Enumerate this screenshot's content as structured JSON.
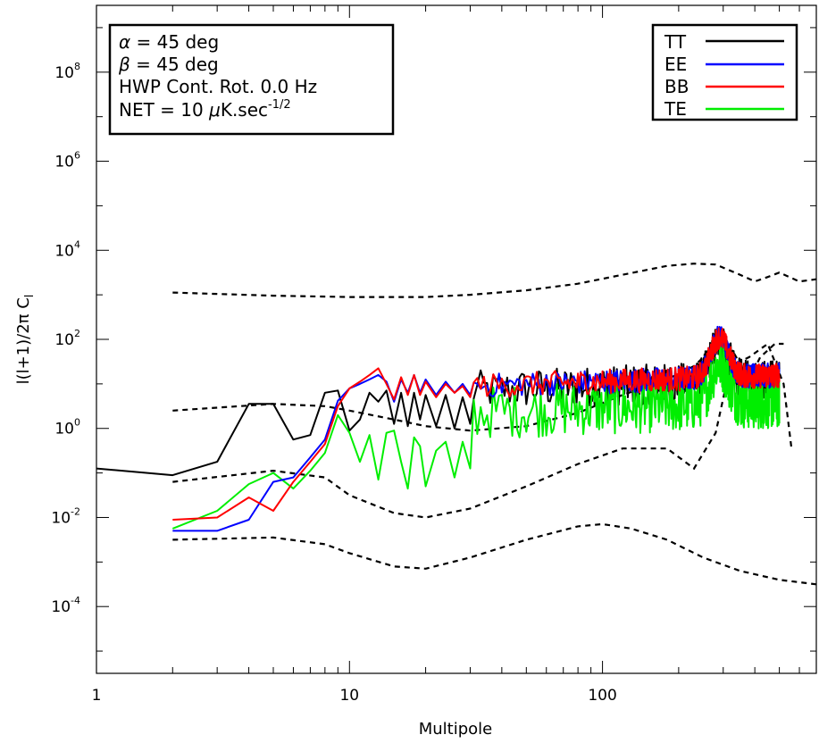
{
  "chart_data": {
    "type": "line",
    "title": "",
    "xlabel": "Multipole",
    "ylabel": "l(l+1)/2π C",
    "ylabel_subscript": "l",
    "xscale": "log",
    "yscale": "log",
    "xlim": [
      1,
      700
    ],
    "ylim_exp": [
      -5.5,
      9.5
    ],
    "x_ticks": [
      {
        "value": 1,
        "label": "1"
      },
      {
        "value": 10,
        "label": "10"
      },
      {
        "value": 100,
        "label": "100"
      }
    ],
    "y_ticks": [
      {
        "exp": -4,
        "base": "10",
        "sup": "-4"
      },
      {
        "exp": -2,
        "base": "10",
        "sup": "-2"
      },
      {
        "exp": 0,
        "base": "10",
        "sup": "0"
      },
      {
        "exp": 2,
        "base": "10",
        "sup": "2"
      },
      {
        "exp": 4,
        "base": "10",
        "sup": "4"
      },
      {
        "exp": 6,
        "base": "10",
        "sup": "6"
      },
      {
        "exp": 8,
        "base": "10",
        "sup": "8"
      }
    ],
    "annotation": {
      "line1_sym": "α",
      "line1_text": " = 45 deg",
      "line2_sym": "β",
      "line2_text": " = 45 deg",
      "line3_text": "HWP Cont. Rot. 0.0 Hz",
      "line4_pre": "NET = 10 ",
      "line4_sym": "μ",
      "line4_post": "K.sec",
      "line4_sup": "-1/2"
    },
    "legend": {
      "position": "top-right",
      "entries": [
        {
          "label": "TT",
          "color": "#000000"
        },
        {
          "label": "EE",
          "color": "#0000ff"
        },
        {
          "label": "BB",
          "color": "#ff0000"
        },
        {
          "label": "TE",
          "color": "#00ee00"
        }
      ]
    },
    "reference_curves": [
      {
        "name": "TT model",
        "style": "dashed",
        "x": [
          2,
          5,
          10,
          20,
          30,
          50,
          80,
          120,
          180,
          230,
          280,
          350,
          400,
          450,
          500,
          600,
          700
        ],
        "log10_y": [
          3.05,
          2.98,
          2.95,
          2.95,
          3.0,
          3.1,
          3.25,
          3.45,
          3.65,
          3.7,
          3.68,
          3.45,
          3.3,
          3.4,
          3.5,
          3.3,
          3.35
        ]
      },
      {
        "name": "EE model",
        "style": "dashed",
        "x": [
          2,
          5,
          8,
          10,
          15,
          20,
          30,
          50,
          80,
          120,
          180,
          230,
          280,
          300,
          330,
          380,
          420,
          480,
          520
        ],
        "log10_y": [
          0.4,
          0.55,
          0.5,
          0.4,
          0.2,
          0.05,
          -0.05,
          0.05,
          0.35,
          0.75,
          1.1,
          1.4,
          1.85,
          1.95,
          1.7,
          1.1,
          1.6,
          1.9,
          1.9
        ]
      },
      {
        "name": "TE model",
        "style": "dashed",
        "x": [
          2,
          5,
          8,
          10,
          15,
          20,
          30,
          50,
          80,
          120,
          180,
          230,
          280,
          320,
          380,
          450,
          520,
          560
        ],
        "log10_y": [
          -1.2,
          -0.95,
          -1.1,
          -1.5,
          -1.9,
          -2.0,
          -1.8,
          -1.3,
          -0.8,
          -0.45,
          -0.45,
          -0.9,
          -0.1,
          1.4,
          1.6,
          1.9,
          1.0,
          -0.5
        ]
      },
      {
        "name": "BB model",
        "style": "dashed",
        "x": [
          2,
          5,
          8,
          10,
          15,
          20,
          30,
          50,
          80,
          100,
          130,
          180,
          250,
          350,
          500,
          700
        ],
        "log10_y": [
          -2.5,
          -2.45,
          -2.6,
          -2.8,
          -3.1,
          -3.15,
          -2.9,
          -2.5,
          -2.2,
          -2.15,
          -2.25,
          -2.5,
          -2.9,
          -3.2,
          -3.4,
          -3.5
        ]
      }
    ],
    "series": [
      {
        "name": "TT",
        "color": "#000000",
        "x": [
          1,
          2,
          3,
          4,
          5,
          6,
          7,
          8,
          9,
          10,
          11,
          12,
          13,
          14,
          15,
          16,
          17,
          18,
          19,
          20,
          22,
          24,
          26,
          28,
          30
        ],
        "log10_y": [
          -0.9,
          -1.05,
          -0.75,
          0.55,
          0.55,
          -0.25,
          -0.15,
          0.8,
          0.85,
          -0.05,
          0.2,
          0.8,
          0.6,
          0.85,
          0.1,
          0.8,
          0.05,
          0.8,
          0.2,
          0.75,
          0.05,
          0.75,
          0.0,
          0.7,
          0.1
        ]
      },
      {
        "name": "EE",
        "color": "#0000ff",
        "x": [
          2,
          3,
          4,
          5,
          6,
          7,
          8,
          9,
          10,
          11,
          12,
          13,
          14,
          15,
          16,
          17,
          18,
          19,
          20,
          22,
          24,
          26,
          28,
          30
        ],
        "log10_y": [
          -2.3,
          -2.3,
          -2.05,
          -1.2,
          -1.1,
          -0.65,
          -0.25,
          0.62,
          0.9,
          1.0,
          1.1,
          1.2,
          1.05,
          0.6,
          1.1,
          0.8,
          1.2,
          0.8,
          1.1,
          0.75,
          1.05,
          0.8,
          1.0,
          0.75
        ]
      },
      {
        "name": "BB",
        "color": "#ff0000",
        "x": [
          2,
          3,
          4,
          5,
          6,
          7,
          8,
          9,
          10,
          11,
          12,
          13,
          14,
          15,
          16,
          17,
          18,
          19,
          20,
          22,
          24,
          26,
          28,
          30
        ],
        "log10_y": [
          -2.05,
          -2.0,
          -1.55,
          -1.85,
          -1.2,
          -0.75,
          -0.35,
          0.5,
          0.9,
          1.05,
          1.2,
          1.35,
          1.0,
          0.65,
          1.15,
          0.75,
          1.2,
          0.75,
          1.05,
          0.7,
          1.0,
          0.8,
          0.95,
          0.7
        ]
      },
      {
        "name": "TE",
        "color": "#00ee00",
        "x": [
          2,
          3,
          4,
          5,
          6,
          7,
          8,
          9,
          10,
          11,
          12,
          13,
          14,
          15,
          16,
          17,
          18,
          19,
          20,
          22,
          24,
          26,
          28,
          30
        ],
        "log10_y": [
          -2.25,
          -1.85,
          -1.25,
          -1.0,
          -1.35,
          -0.95,
          -0.55,
          0.3,
          -0.1,
          -0.75,
          -0.15,
          -1.15,
          -0.1,
          -0.05,
          -0.75,
          -1.35,
          -0.2,
          -0.4,
          -1.3,
          -0.5,
          -0.3,
          -1.1,
          -0.3,
          -0.9
        ]
      }
    ],
    "high_l_noise": {
      "l_min": 30,
      "l_max": 500,
      "TT_log10_base": 0.85,
      "EE_log10_base": 0.95,
      "BB_log10_base": 0.95,
      "TE_log10_base": 0.35,
      "peak_l": 290,
      "peak_log10_boost": 0.9
    }
  }
}
